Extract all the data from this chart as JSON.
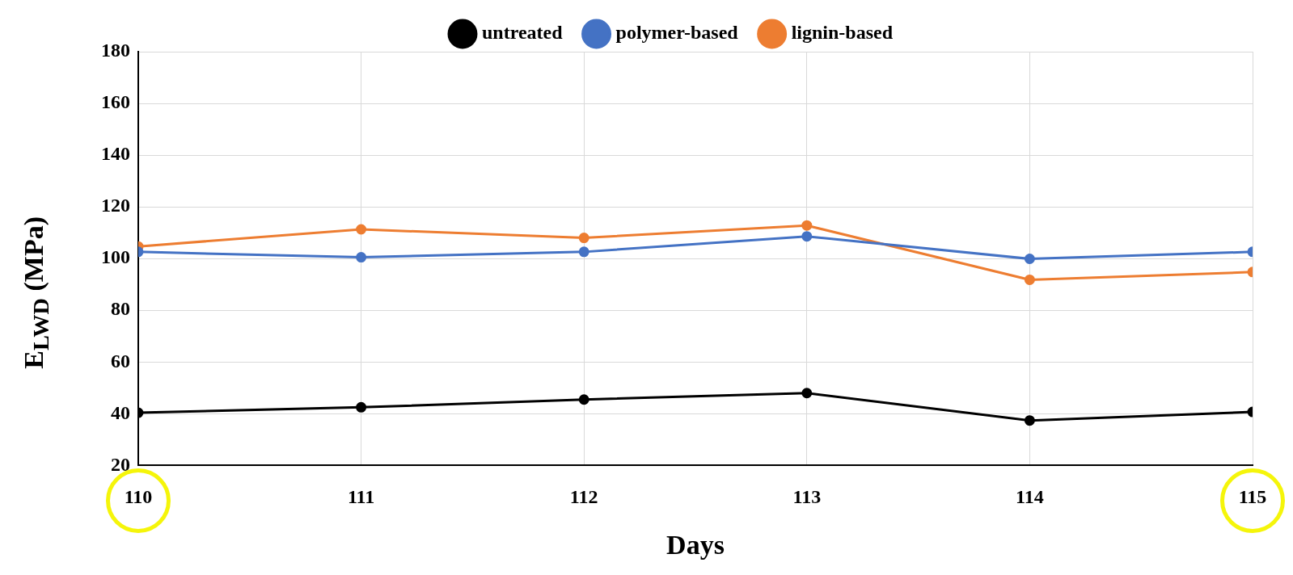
{
  "chart_data": {
    "type": "line",
    "xlabel": "Days",
    "ylabel": "E$_{LWD}$ (MPa)",
    "x": [
      110,
      111,
      112,
      113,
      114,
      115
    ],
    "series": [
      {
        "name": "untreated",
        "color": "#000000",
        "values": [
          40.4,
          42.5,
          45.5,
          48,
          37.4,
          40.7
        ]
      },
      {
        "name": "polymer-based",
        "color": "#4472c4",
        "values": [
          102.6,
          100.5,
          102.6,
          108.6,
          99.9,
          102.6
        ]
      },
      {
        "name": "lignin-based",
        "color": "#ed7d31",
        "values": [
          104.7,
          111.3,
          108,
          112.8,
          91.8,
          94.8
        ]
      }
    ],
    "xlim": [
      110,
      115
    ],
    "xticks": [
      110,
      111,
      112,
      113,
      114,
      115
    ],
    "ylim": [
      20,
      180
    ],
    "yticks": [
      20,
      40,
      60,
      80,
      100,
      120,
      140,
      160,
      180
    ],
    "grid": true,
    "legend": "top",
    "marker": "circle",
    "line_style": "solid"
  }
}
